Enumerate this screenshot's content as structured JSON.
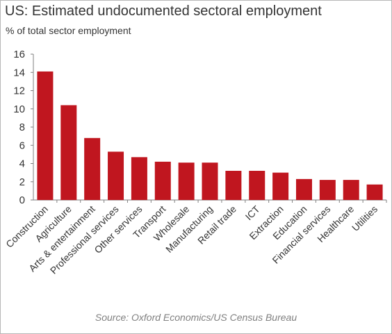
{
  "title": "US: Estimated undocumented sectoral employment",
  "subtitle": "% of total sector employment",
  "source": "Source: Oxford Economics/US Census Bureau",
  "colors": {
    "bar": "#c0161f",
    "axis": "#7f7f7f"
  },
  "chart_data": {
    "type": "bar",
    "categories": [
      "Construction",
      "Agriculture",
      "Arts & entertainment",
      "Professional services",
      "Other services",
      "Transport",
      "Wholesale",
      "Manufacturing",
      "Retail trade",
      "ICT",
      "Extraction",
      "Education",
      "Financial services",
      "Healthcare",
      "Utilities"
    ],
    "values": [
      14.1,
      10.4,
      6.8,
      5.3,
      4.7,
      4.2,
      4.1,
      4.1,
      3.2,
      3.2,
      3.0,
      2.3,
      2.2,
      2.2,
      1.7
    ],
    "ylim": [
      0,
      16
    ],
    "yticks": [
      "0",
      "2",
      "4",
      "6",
      "8",
      "10",
      "12",
      "14",
      "16"
    ],
    "grid": false,
    "legend": "none"
  }
}
